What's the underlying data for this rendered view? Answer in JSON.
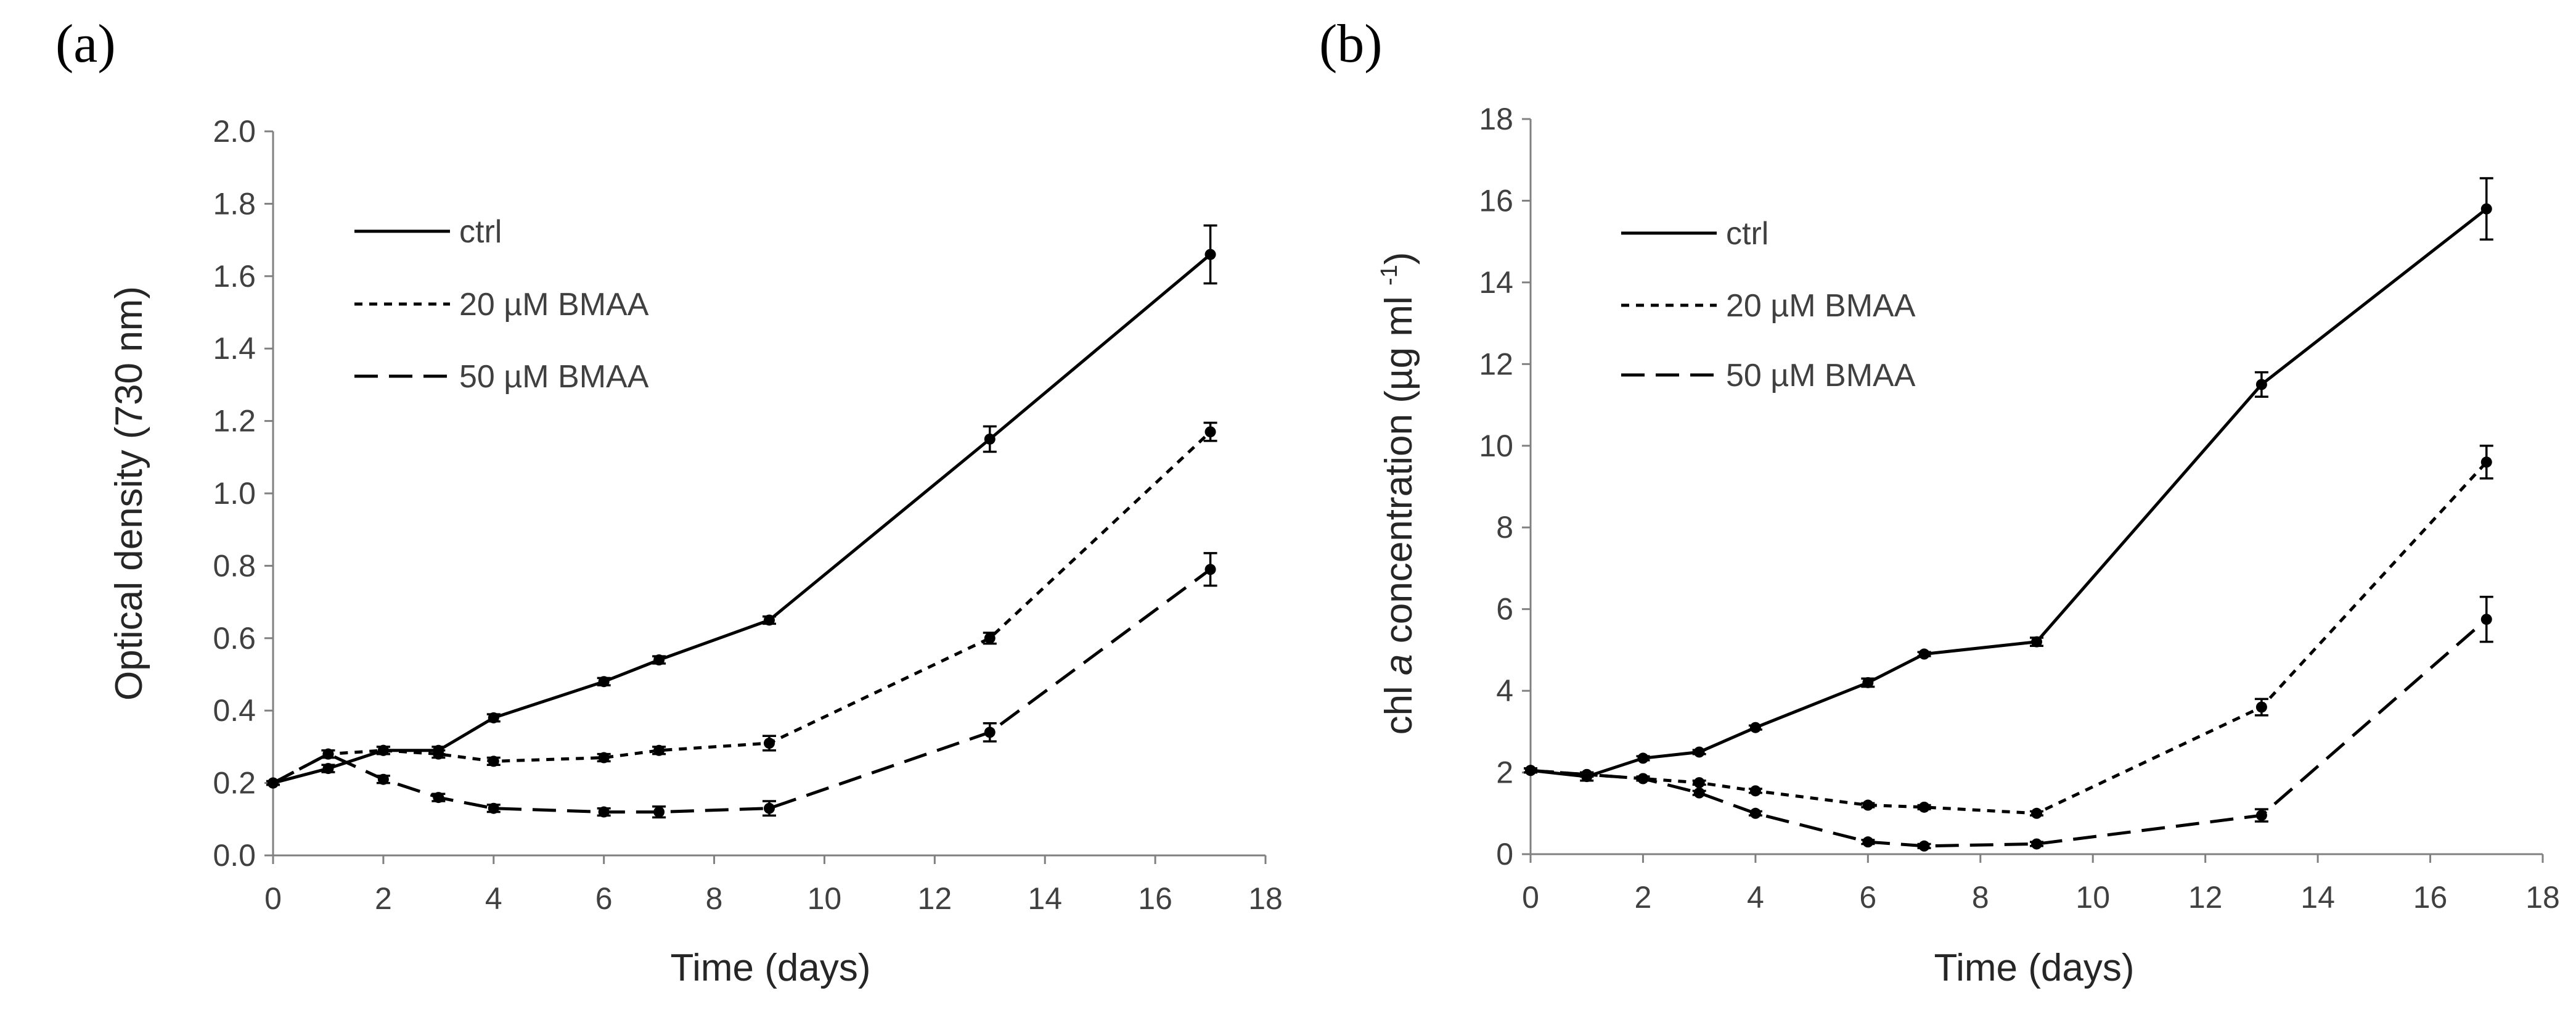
{
  "chart_data": [
    {
      "type": "line",
      "panel_label": "(a)",
      "title": "",
      "xlabel": "Time (days)",
      "ylabel": "Optical density (730 nm)",
      "xlim": [
        0,
        18
      ],
      "ylim": [
        0,
        2.0
      ],
      "xticks": [
        "0",
        "2",
        "4",
        "6",
        "8",
        "10",
        "12",
        "14",
        "16",
        "18"
      ],
      "yticks": [
        "0.0",
        "0.2",
        "0.4",
        "0.6",
        "0.8",
        "1.0",
        "1.2",
        "1.4",
        "1.6",
        "1.8",
        "2.0"
      ],
      "legend_position": "top-left",
      "x": [
        0,
        1,
        2,
        3,
        4,
        6,
        7,
        9,
        13,
        17
      ],
      "series": [
        {
          "name": "ctrl",
          "style": "solid",
          "values": [
            0.2,
            0.24,
            0.29,
            0.29,
            0.38,
            0.48,
            0.54,
            0.65,
            1.15,
            1.66
          ],
          "errors": [
            0.005,
            0.01,
            0.01,
            0.01,
            0.01,
            0.01,
            0.01,
            0.01,
            0.035,
            0.08
          ]
        },
        {
          "name": "20 µM BMAA",
          "style": "dotted",
          "values": [
            0.2,
            0.28,
            0.29,
            0.28,
            0.26,
            0.27,
            0.29,
            0.31,
            0.6,
            1.17
          ],
          "errors": [
            0.005,
            0.01,
            0.01,
            0.01,
            0.01,
            0.01,
            0.01,
            0.02,
            0.015,
            0.025
          ]
        },
        {
          "name": "50 µM BMAA",
          "style": "dashed",
          "values": [
            0.2,
            0.28,
            0.21,
            0.16,
            0.13,
            0.12,
            0.12,
            0.13,
            0.34,
            0.79
          ],
          "errors": [
            0.005,
            0.01,
            0.01,
            0.01,
            0.01,
            0.01,
            0.015,
            0.02,
            0.025,
            0.045
          ]
        }
      ]
    },
    {
      "type": "line",
      "panel_label": "(b)",
      "title": "",
      "xlabel": "Time (days)",
      "ylabel_parts": [
        "chl ",
        "a",
        " concentration (µg ml ",
        "-1",
        ")"
      ],
      "xlim": [
        0,
        18
      ],
      "ylim": [
        0,
        18
      ],
      "xticks": [
        "0",
        "2",
        "4",
        "6",
        "8",
        "10",
        "12",
        "14",
        "16",
        "18"
      ],
      "yticks": [
        "0",
        "2",
        "4",
        "6",
        "8",
        "10",
        "12",
        "14",
        "16",
        "18"
      ],
      "legend_position": "top-left",
      "x": [
        0,
        1,
        2,
        3,
        4,
        6,
        7,
        9,
        13,
        17
      ],
      "series": [
        {
          "name": "ctrl",
          "style": "solid",
          "values": [
            2.05,
            1.9,
            2.35,
            2.5,
            3.1,
            4.2,
            4.9,
            5.2,
            11.5,
            15.8
          ],
          "errors": [
            0.05,
            0.1,
            0.05,
            0.05,
            0.05,
            0.1,
            0.05,
            0.1,
            0.3,
            0.75
          ]
        },
        {
          "name": "20 µM BMAA",
          "style": "dotted",
          "values": [
            2.05,
            1.95,
            1.85,
            1.75,
            1.55,
            1.2,
            1.15,
            1.0,
            3.6,
            9.6
          ],
          "errors": [
            0.05,
            0.05,
            0.05,
            0.05,
            0.05,
            0.05,
            0.05,
            0.05,
            0.2,
            0.4
          ]
        },
        {
          "name": "50 µM BMAA",
          "style": "dashed",
          "values": [
            2.05,
            1.95,
            1.85,
            1.5,
            1.0,
            0.3,
            0.2,
            0.25,
            0.95,
            5.75
          ],
          "errors": [
            0.05,
            0.05,
            0.05,
            0.05,
            0.05,
            0.05,
            0.05,
            0.05,
            0.15,
            0.55
          ]
        }
      ]
    }
  ]
}
